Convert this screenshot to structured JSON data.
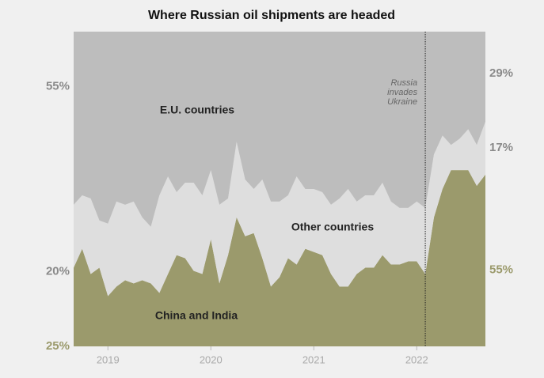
{
  "chart_data": {
    "type": "stacked_area",
    "title": "Where Russian oil shipments are headed",
    "x": [
      2018.667,
      2018.75,
      2018.833,
      2018.917,
      2019,
      2019.083,
      2019.167,
      2019.25,
      2019.333,
      2019.417,
      2019.5,
      2019.583,
      2019.667,
      2019.75,
      2019.833,
      2019.917,
      2020,
      2020.083,
      2020.167,
      2020.25,
      2020.333,
      2020.417,
      2020.5,
      2020.583,
      2020.667,
      2020.75,
      2020.833,
      2020.917,
      2021,
      2021.083,
      2021.167,
      2021.25,
      2021.333,
      2021.417,
      2021.5,
      2021.583,
      2021.667,
      2021.75,
      2021.833,
      2021.917,
      2022,
      2022.083,
      2022.167,
      2022.25,
      2022.333,
      2022.417,
      2022.5,
      2022.583,
      2022.667
    ],
    "xlim": [
      2018.667,
      2022.667
    ],
    "xticks": [
      2019,
      2020,
      2021,
      2022
    ],
    "ylim": [
      0,
      100
    ],
    "series": [
      {
        "name": "China and India",
        "color": "#9b9a6c",
        "label_color": "#9b9a6c",
        "start_label": "25%",
        "end_label": "55%",
        "values": [
          25,
          31,
          23,
          25,
          16,
          19,
          21,
          20,
          21,
          20,
          17,
          23,
          29,
          28,
          24,
          23,
          34,
          20,
          29,
          41,
          35,
          36,
          28,
          19,
          22,
          28,
          26,
          31,
          30,
          29,
          23,
          19,
          19,
          23,
          25,
          25,
          29,
          26,
          26,
          27,
          27,
          23,
          41,
          50,
          56,
          56,
          56,
          51,
          54.6
        ]
      },
      {
        "name": "Other countries",
        "color": "#dedede",
        "label_color": "#8a8a8a",
        "start_label": "20%",
        "end_label": "17%",
        "values": [
          20,
          17,
          24,
          15,
          23,
          27,
          24,
          26,
          20,
          18,
          31,
          31,
          20,
          24,
          28,
          25,
          22,
          25,
          18,
          24,
          18,
          14,
          25,
          27,
          24,
          20,
          28,
          19,
          20,
          20,
          22,
          28,
          31,
          23,
          23,
          23,
          23,
          20,
          18,
          17,
          19,
          21,
          20,
          17,
          8,
          10,
          13,
          13,
          16.8
        ]
      },
      {
        "name": "E.U. countries",
        "color": "#bdbdbd",
        "label_color": "#8a8a8a",
        "start_label": "55%",
        "end_label": "29%",
        "values": [
          55,
          52,
          53,
          60,
          61,
          54,
          55,
          54,
          59,
          62,
          52,
          46,
          51,
          48,
          48,
          52,
          44,
          55,
          53,
          35,
          47,
          50,
          47,
          54,
          54,
          52,
          46,
          50,
          50,
          51,
          55,
          53,
          50,
          54,
          52,
          52,
          48,
          54,
          56,
          56,
          54,
          56,
          39,
          33,
          36,
          34,
          31,
          36,
          28.6
        ]
      }
    ],
    "annotation": {
      "x": 2022.083,
      "text": [
        "Russia",
        "invades",
        "Ukraine"
      ]
    }
  }
}
